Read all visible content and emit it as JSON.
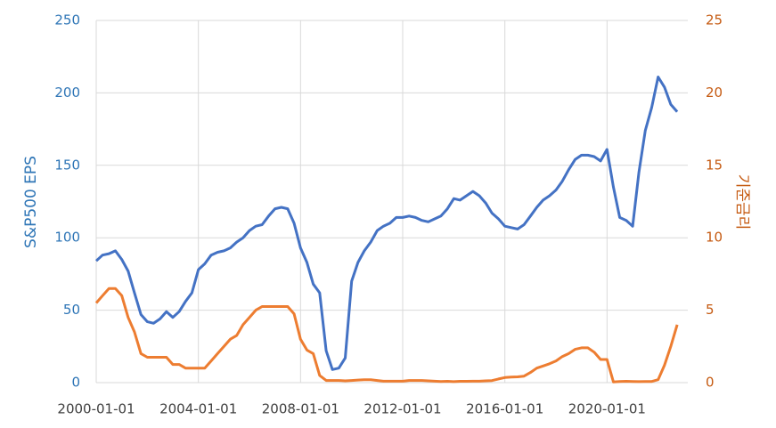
{
  "chart_data": {
    "type": "line",
    "y_label": "S&P500 EPS",
    "y2_label": "기준금리",
    "x": [
      "2000-01-01",
      "2000-04-01",
      "2000-07-01",
      "2000-10-01",
      "2001-01-01",
      "2001-04-01",
      "2001-07-01",
      "2001-10-01",
      "2002-01-01",
      "2002-04-01",
      "2002-07-01",
      "2002-10-01",
      "2003-01-01",
      "2003-04-01",
      "2003-07-01",
      "2003-10-01",
      "2004-01-01",
      "2004-04-01",
      "2004-07-01",
      "2004-10-01",
      "2005-01-01",
      "2005-04-01",
      "2005-07-01",
      "2005-10-01",
      "2006-01-01",
      "2006-04-01",
      "2006-07-01",
      "2006-10-01",
      "2007-01-01",
      "2007-04-01",
      "2007-07-01",
      "2007-10-01",
      "2008-01-01",
      "2008-04-01",
      "2008-07-01",
      "2008-10-01",
      "2009-01-01",
      "2009-04-01",
      "2009-07-01",
      "2009-10-01",
      "2010-01-01",
      "2010-04-01",
      "2010-07-01",
      "2010-10-01",
      "2011-01-01",
      "2011-04-01",
      "2011-07-01",
      "2011-10-01",
      "2012-01-01",
      "2012-04-01",
      "2012-07-01",
      "2012-10-01",
      "2013-01-01",
      "2013-04-01",
      "2013-07-01",
      "2013-10-01",
      "2014-01-01",
      "2014-04-01",
      "2014-07-01",
      "2014-10-01",
      "2015-01-01",
      "2015-04-01",
      "2015-07-01",
      "2015-10-01",
      "2016-01-01",
      "2016-04-01",
      "2016-07-01",
      "2016-10-01",
      "2017-01-01",
      "2017-04-01",
      "2017-07-01",
      "2017-10-01",
      "2018-01-01",
      "2018-04-01",
      "2018-07-01",
      "2018-10-01",
      "2019-01-01",
      "2019-04-01",
      "2019-07-01",
      "2019-10-01",
      "2020-01-01",
      "2020-04-01",
      "2020-07-01",
      "2020-10-01",
      "2021-01-01",
      "2021-04-01",
      "2021-07-01",
      "2021-10-01",
      "2022-01-01",
      "2022-04-01",
      "2022-07-01",
      "2022-10-01"
    ],
    "series": [
      {
        "color": "#4472c4",
        "values": [
          84,
          88,
          89,
          91,
          85,
          77,
          62,
          47,
          42,
          41,
          44,
          49,
          45,
          49,
          56,
          62,
          78,
          82,
          88,
          90,
          91,
          93,
          97,
          100,
          105,
          108,
          109,
          115,
          120,
          121,
          120,
          110,
          93,
          83,
          68,
          62,
          22,
          9,
          10,
          17,
          70,
          83,
          91,
          97,
          105,
          108,
          110,
          114,
          114,
          115,
          114,
          112,
          111,
          113,
          115,
          120,
          127,
          126,
          129,
          132,
          129,
          124,
          117,
          113,
          108,
          107,
          106,
          109,
          115,
          121,
          126,
          129,
          133,
          139,
          147,
          154,
          157,
          157,
          156,
          153,
          161,
          135,
          114,
          112,
          108,
          145,
          174,
          190,
          211,
          204,
          192,
          187
        ]
      },
      {
        "color": "#ed7d31",
        "axis": "y2",
        "values": [
          5.5,
          6.0,
          6.5,
          6.5,
          6.0,
          4.5,
          3.5,
          2.0,
          1.75,
          1.75,
          1.75,
          1.75,
          1.25,
          1.25,
          1.0,
          1.0,
          1.0,
          1.0,
          1.5,
          2.0,
          2.5,
          3.0,
          3.25,
          4.0,
          4.5,
          5.0,
          5.25,
          5.25,
          5.25,
          5.25,
          5.25,
          4.75,
          3.0,
          2.25,
          2.0,
          0.5,
          0.15,
          0.15,
          0.15,
          0.12,
          0.15,
          0.18,
          0.2,
          0.2,
          0.15,
          0.1,
          0.1,
          0.1,
          0.1,
          0.15,
          0.15,
          0.15,
          0.12,
          0.1,
          0.08,
          0.09,
          0.07,
          0.09,
          0.09,
          0.1,
          0.1,
          0.12,
          0.14,
          0.25,
          0.35,
          0.38,
          0.4,
          0.45,
          0.7,
          1.0,
          1.15,
          1.3,
          1.5,
          1.8,
          2.0,
          2.3,
          2.4,
          2.4,
          2.1,
          1.6,
          1.6,
          0.05,
          0.08,
          0.09,
          0.08,
          0.07,
          0.08,
          0.08,
          0.2,
          1.2,
          2.5,
          4.0
        ]
      }
    ],
    "xlim": [
      "2000-01-01",
      "2023-03-01"
    ],
    "xticks": [
      "2000-01-01",
      "2004-01-01",
      "2008-01-01",
      "2012-01-01",
      "2016-01-01",
      "2020-01-01"
    ],
    "ylim": [
      0,
      250
    ],
    "yticks": [
      0,
      50,
      100,
      150,
      200,
      250
    ],
    "y2lim": [
      0,
      25
    ],
    "y2ticks": [
      0,
      5,
      10,
      15,
      20,
      25
    ],
    "grid": true
  }
}
